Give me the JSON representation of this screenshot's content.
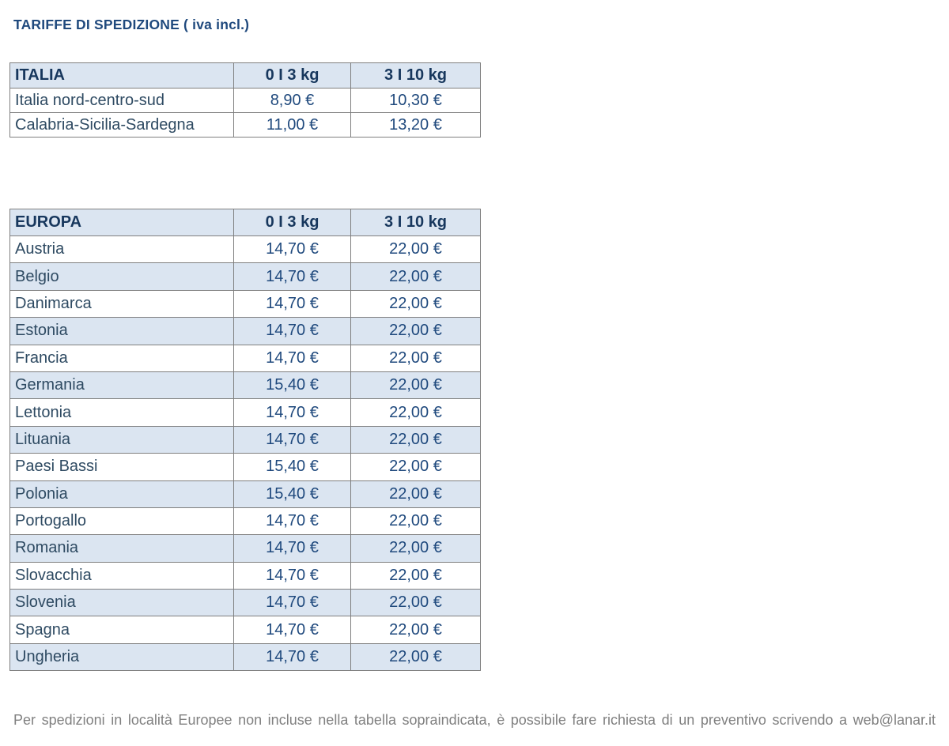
{
  "page": {
    "title": "TARIFFE DI SPEDIZIONE ( iva incl.)",
    "footer_note": "Per spedizioni in località Europee non incluse nella tabella sopraindicata, è possibile fare richiesta di un preventivo scrivendo a web@lanar.it"
  },
  "colors": {
    "accent_blue": "#1f497d",
    "header_text": "#17375d",
    "row_name_text": "#2e4a62",
    "table_header_bg": "#dbe5f1",
    "row_stripe_bg": "#dbe5f1",
    "grid_border": "#7f7f7f",
    "footer_text": "#808080"
  },
  "tables": [
    {
      "region_label": "ITALIA",
      "col_headers": [
        "0 I 3 kg",
        "3 I 10 kg"
      ],
      "rows": [
        {
          "name": "Italia nord-centro-sud",
          "price_0_3": "8,90 €",
          "price_3_10": "10,30 €"
        },
        {
          "name": "Calabria-Sicilia-Sardegna",
          "price_0_3": "11,00 €",
          "price_3_10": "13,20 €"
        }
      ]
    },
    {
      "region_label": "EUROPA",
      "col_headers": [
        "0 I 3 kg",
        "3 I 10 kg"
      ],
      "rows": [
        {
          "name": "Austria",
          "price_0_3": "14,70 €",
          "price_3_10": "22,00 €"
        },
        {
          "name": "Belgio",
          "price_0_3": "14,70 €",
          "price_3_10": "22,00 €"
        },
        {
          "name": "Danimarca",
          "price_0_3": "14,70 €",
          "price_3_10": "22,00 €"
        },
        {
          "name": "Estonia",
          "price_0_3": "14,70 €",
          "price_3_10": "22,00 €"
        },
        {
          "name": "Francia",
          "price_0_3": "14,70 €",
          "price_3_10": "22,00 €"
        },
        {
          "name": "Germania",
          "price_0_3": "15,40 €",
          "price_3_10": "22,00 €"
        },
        {
          "name": "Lettonia",
          "price_0_3": "14,70 €",
          "price_3_10": "22,00 €"
        },
        {
          "name": "Lituania",
          "price_0_3": "14,70 €",
          "price_3_10": "22,00 €"
        },
        {
          "name": "Paesi Bassi",
          "price_0_3": "15,40 €",
          "price_3_10": "22,00 €"
        },
        {
          "name": "Polonia",
          "price_0_3": "15,40 €",
          "price_3_10": "22,00 €"
        },
        {
          "name": "Portogallo",
          "price_0_3": "14,70 €",
          "price_3_10": "22,00 €"
        },
        {
          "name": "Romania",
          "price_0_3": "14,70 €",
          "price_3_10": "22,00 €"
        },
        {
          "name": "Slovacchia",
          "price_0_3": "14,70 €",
          "price_3_10": "22,00 €"
        },
        {
          "name": "Slovenia",
          "price_0_3": "14,70 €",
          "price_3_10": "22,00 €"
        },
        {
          "name": "Spagna",
          "price_0_3": "14,70 €",
          "price_3_10": "22,00 €"
        },
        {
          "name": "Ungheria",
          "price_0_3": "14,70 €",
          "price_3_10": "22,00 €"
        }
      ]
    }
  ]
}
